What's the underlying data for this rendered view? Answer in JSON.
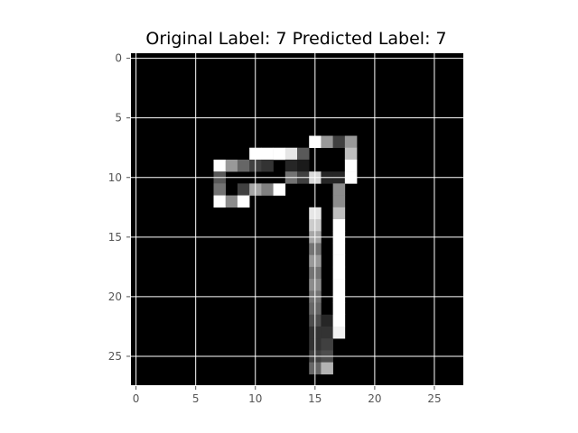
{
  "chart_data": {
    "type": "heatmap",
    "title": "Original Label: 7  Predicted Label: 7",
    "xlabel": "",
    "ylabel": "",
    "xlim": [
      -0.5,
      27.5
    ],
    "ylim": [
      27.5,
      -0.5
    ],
    "x_ticks": [
      0,
      5,
      10,
      15,
      20,
      25
    ],
    "y_ticks": [
      0,
      5,
      10,
      15,
      20,
      25
    ],
    "colormap": "gray",
    "grid": true,
    "grid_color": "#ffffff",
    "background_color": "#000000",
    "rows": 28,
    "cols": 28,
    "nonzero_pixels": [
      {
        "r": 7,
        "c": 15,
        "v": 1.0
      },
      {
        "r": 7,
        "c": 16,
        "v": 0.6
      },
      {
        "r": 7,
        "c": 17,
        "v": 0.25
      },
      {
        "r": 7,
        "c": 18,
        "v": 0.6
      },
      {
        "r": 8,
        "c": 10,
        "v": 1.0
      },
      {
        "r": 8,
        "c": 11,
        "v": 1.0
      },
      {
        "r": 8,
        "c": 12,
        "v": 1.0
      },
      {
        "r": 8,
        "c": 13,
        "v": 0.9
      },
      {
        "r": 8,
        "c": 14,
        "v": 0.35
      },
      {
        "r": 8,
        "c": 18,
        "v": 0.75
      },
      {
        "r": 9,
        "c": 7,
        "v": 1.0
      },
      {
        "r": 9,
        "c": 8,
        "v": 0.6
      },
      {
        "r": 9,
        "c": 9,
        "v": 0.4
      },
      {
        "r": 9,
        "c": 10,
        "v": 0.25
      },
      {
        "r": 9,
        "c": 11,
        "v": 0.2
      },
      {
        "r": 9,
        "c": 13,
        "v": 0.15
      },
      {
        "r": 9,
        "c": 14,
        "v": 0.1
      },
      {
        "r": 9,
        "c": 18,
        "v": 1.0
      },
      {
        "r": 10,
        "c": 7,
        "v": 0.35
      },
      {
        "r": 10,
        "c": 13,
        "v": 0.45
      },
      {
        "r": 10,
        "c": 14,
        "v": 0.25
      },
      {
        "r": 10,
        "c": 15,
        "v": 0.85
      },
      {
        "r": 10,
        "c": 16,
        "v": 0.15
      },
      {
        "r": 10,
        "c": 17,
        "v": 0.15
      },
      {
        "r": 10,
        "c": 18,
        "v": 1.0
      },
      {
        "r": 11,
        "c": 7,
        "v": 0.45
      },
      {
        "r": 11,
        "c": 9,
        "v": 0.25
      },
      {
        "r": 11,
        "c": 10,
        "v": 0.65
      },
      {
        "r": 11,
        "c": 11,
        "v": 0.5
      },
      {
        "r": 11,
        "c": 12,
        "v": 1.0
      },
      {
        "r": 11,
        "c": 17,
        "v": 0.55
      },
      {
        "r": 12,
        "c": 7,
        "v": 1.0
      },
      {
        "r": 12,
        "c": 8,
        "v": 0.55
      },
      {
        "r": 12,
        "c": 9,
        "v": 1.0
      },
      {
        "r": 12,
        "c": 17,
        "v": 0.55
      },
      {
        "r": 13,
        "c": 15,
        "v": 0.9
      },
      {
        "r": 13,
        "c": 17,
        "v": 0.75
      },
      {
        "r": 14,
        "c": 15,
        "v": 0.8
      },
      {
        "r": 14,
        "c": 17,
        "v": 1.0
      },
      {
        "r": 15,
        "c": 15,
        "v": 0.65
      },
      {
        "r": 15,
        "c": 17,
        "v": 1.0
      },
      {
        "r": 16,
        "c": 15,
        "v": 0.45
      },
      {
        "r": 16,
        "c": 17,
        "v": 1.0
      },
      {
        "r": 17,
        "c": 15,
        "v": 0.6
      },
      {
        "r": 17,
        "c": 17,
        "v": 1.0
      },
      {
        "r": 18,
        "c": 15,
        "v": 0.45
      },
      {
        "r": 18,
        "c": 17,
        "v": 1.0
      },
      {
        "r": 19,
        "c": 15,
        "v": 0.55
      },
      {
        "r": 19,
        "c": 17,
        "v": 1.0
      },
      {
        "r": 20,
        "c": 15,
        "v": 0.45
      },
      {
        "r": 20,
        "c": 17,
        "v": 1.0
      },
      {
        "r": 21,
        "c": 15,
        "v": 0.4
      },
      {
        "r": 21,
        "c": 17,
        "v": 1.0
      },
      {
        "r": 22,
        "c": 15,
        "v": 0.3
      },
      {
        "r": 22,
        "c": 16,
        "v": 0.15
      },
      {
        "r": 22,
        "c": 17,
        "v": 1.0
      },
      {
        "r": 23,
        "c": 15,
        "v": 0.2
      },
      {
        "r": 23,
        "c": 16,
        "v": 0.2
      },
      {
        "r": 23,
        "c": 17,
        "v": 0.95
      },
      {
        "r": 24,
        "c": 15,
        "v": 0.2
      },
      {
        "r": 24,
        "c": 16,
        "v": 0.25
      },
      {
        "r": 25,
        "c": 15,
        "v": 0.25
      },
      {
        "r": 25,
        "c": 16,
        "v": 0.3
      },
      {
        "r": 26,
        "c": 15,
        "v": 0.4
      },
      {
        "r": 26,
        "c": 16,
        "v": 0.7
      }
    ]
  }
}
